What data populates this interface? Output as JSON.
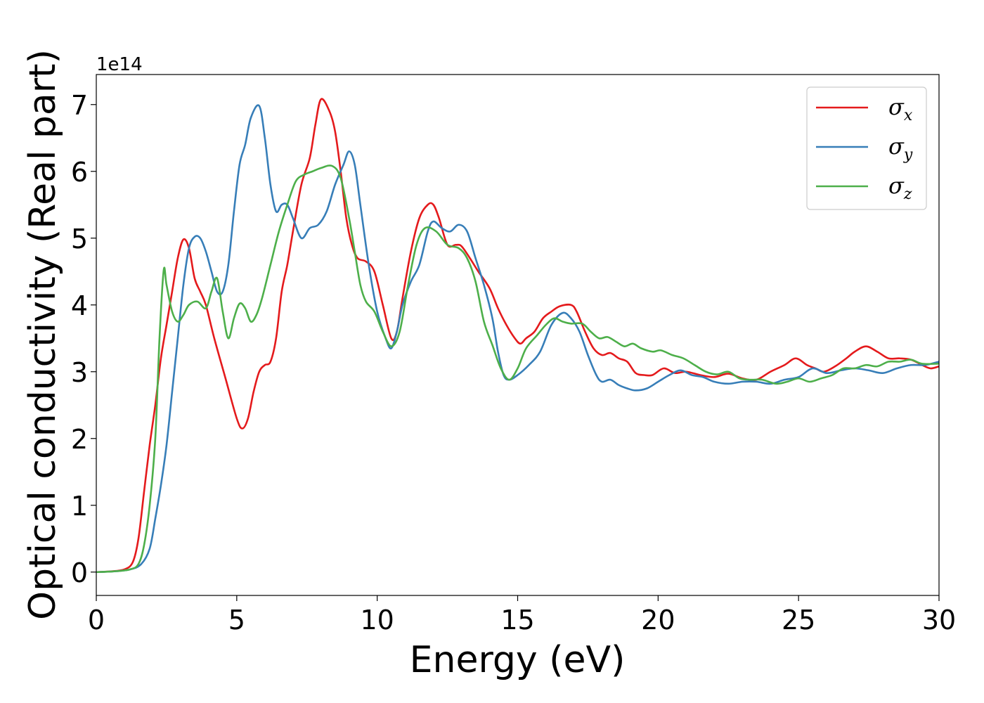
{
  "chart_data": {
    "type": "line",
    "title": "",
    "xlabel": "Energy (eV)",
    "ylabel": "Optical conductivity (Real part)",
    "y_multiplier_label": "1e14",
    "xlim": [
      0,
      30
    ],
    "ylim": [
      -0.35,
      7.45
    ],
    "x_ticks": [
      0,
      5,
      10,
      15,
      20,
      25,
      30
    ],
    "y_ticks": [
      0,
      1,
      2,
      3,
      4,
      5,
      6,
      7
    ],
    "grid": false,
    "legend_placement": "top-right",
    "series": [
      {
        "name": "σx",
        "symbol": "σ",
        "subscript": "x",
        "color": "#e41a1c",
        "points": [
          [
            0,
            0
          ],
          [
            0.5,
            0.01
          ],
          [
            1.0,
            0.04
          ],
          [
            1.3,
            0.15
          ],
          [
            1.5,
            0.5
          ],
          [
            1.7,
            1.2
          ],
          [
            1.9,
            1.9
          ],
          [
            2.1,
            2.5
          ],
          [
            2.3,
            3.2
          ],
          [
            2.5,
            3.7
          ],
          [
            2.7,
            4.2
          ],
          [
            2.9,
            4.7
          ],
          [
            3.1,
            4.98
          ],
          [
            3.3,
            4.85
          ],
          [
            3.5,
            4.4
          ],
          [
            3.7,
            4.2
          ],
          [
            3.9,
            4.0
          ],
          [
            4.2,
            3.5
          ],
          [
            4.6,
            2.9
          ],
          [
            5.0,
            2.3
          ],
          [
            5.2,
            2.15
          ],
          [
            5.4,
            2.3
          ],
          [
            5.6,
            2.7
          ],
          [
            5.8,
            3.0
          ],
          [
            6.0,
            3.1
          ],
          [
            6.2,
            3.15
          ],
          [
            6.4,
            3.5
          ],
          [
            6.6,
            4.2
          ],
          [
            6.8,
            4.6
          ],
          [
            7.0,
            5.1
          ],
          [
            7.3,
            5.8
          ],
          [
            7.6,
            6.2
          ],
          [
            7.8,
            6.7
          ],
          [
            8.0,
            7.08
          ],
          [
            8.3,
            6.9
          ],
          [
            8.5,
            6.6
          ],
          [
            8.7,
            6.0
          ],
          [
            8.9,
            5.3
          ],
          [
            9.1,
            4.9
          ],
          [
            9.3,
            4.7
          ],
          [
            9.6,
            4.65
          ],
          [
            9.9,
            4.5
          ],
          [
            10.2,
            4.0
          ],
          [
            10.5,
            3.5
          ],
          [
            10.7,
            3.6
          ],
          [
            10.9,
            4.1
          ],
          [
            11.2,
            4.8
          ],
          [
            11.5,
            5.3
          ],
          [
            11.8,
            5.5
          ],
          [
            12.0,
            5.5
          ],
          [
            12.2,
            5.3
          ],
          [
            12.5,
            4.9
          ],
          [
            12.8,
            4.9
          ],
          [
            13.0,
            4.88
          ],
          [
            13.3,
            4.7
          ],
          [
            13.6,
            4.5
          ],
          [
            14.0,
            4.25
          ],
          [
            14.3,
            3.95
          ],
          [
            14.6,
            3.7
          ],
          [
            14.9,
            3.5
          ],
          [
            15.1,
            3.42
          ],
          [
            15.3,
            3.5
          ],
          [
            15.6,
            3.6
          ],
          [
            15.9,
            3.8
          ],
          [
            16.2,
            3.9
          ],
          [
            16.5,
            3.98
          ],
          [
            16.9,
            4.0
          ],
          [
            17.1,
            3.9
          ],
          [
            17.4,
            3.6
          ],
          [
            17.7,
            3.35
          ],
          [
            18.0,
            3.25
          ],
          [
            18.3,
            3.28
          ],
          [
            18.6,
            3.2
          ],
          [
            18.9,
            3.15
          ],
          [
            19.2,
            2.98
          ],
          [
            19.5,
            2.95
          ],
          [
            19.8,
            2.95
          ],
          [
            20.2,
            3.05
          ],
          [
            20.6,
            2.98
          ],
          [
            21.0,
            3.0
          ],
          [
            21.5,
            2.95
          ],
          [
            22.0,
            2.92
          ],
          [
            22.5,
            2.97
          ],
          [
            23.0,
            2.9
          ],
          [
            23.5,
            2.88
          ],
          [
            24.0,
            3.0
          ],
          [
            24.5,
            3.1
          ],
          [
            24.9,
            3.2
          ],
          [
            25.3,
            3.1
          ],
          [
            25.6,
            3.05
          ],
          [
            25.9,
            3.0
          ],
          [
            26.3,
            3.08
          ],
          [
            26.7,
            3.2
          ],
          [
            27.0,
            3.3
          ],
          [
            27.4,
            3.38
          ],
          [
            27.8,
            3.3
          ],
          [
            28.2,
            3.2
          ],
          [
            28.6,
            3.2
          ],
          [
            29.0,
            3.18
          ],
          [
            29.4,
            3.1
          ],
          [
            29.7,
            3.05
          ],
          [
            30.0,
            3.08
          ]
        ]
      },
      {
        "name": "σy",
        "symbol": "σ",
        "subscript": "y",
        "color": "#377eb8",
        "points": [
          [
            0,
            0
          ],
          [
            0.6,
            0.01
          ],
          [
            1.2,
            0.04
          ],
          [
            1.6,
            0.12
          ],
          [
            1.9,
            0.35
          ],
          [
            2.1,
            0.8
          ],
          [
            2.3,
            1.3
          ],
          [
            2.5,
            1.9
          ],
          [
            2.7,
            2.7
          ],
          [
            2.9,
            3.5
          ],
          [
            3.1,
            4.3
          ],
          [
            3.3,
            4.85
          ],
          [
            3.5,
            5.02
          ],
          [
            3.7,
            5.0
          ],
          [
            3.9,
            4.8
          ],
          [
            4.1,
            4.5
          ],
          [
            4.3,
            4.2
          ],
          [
            4.5,
            4.2
          ],
          [
            4.7,
            4.6
          ],
          [
            4.9,
            5.4
          ],
          [
            5.1,
            6.1
          ],
          [
            5.3,
            6.4
          ],
          [
            5.5,
            6.8
          ],
          [
            5.8,
            6.98
          ],
          [
            6.0,
            6.5
          ],
          [
            6.2,
            5.8
          ],
          [
            6.4,
            5.4
          ],
          [
            6.6,
            5.5
          ],
          [
            6.8,
            5.5
          ],
          [
            7.0,
            5.3
          ],
          [
            7.3,
            5.0
          ],
          [
            7.6,
            5.15
          ],
          [
            7.9,
            5.2
          ],
          [
            8.2,
            5.4
          ],
          [
            8.5,
            5.8
          ],
          [
            8.8,
            6.1
          ],
          [
            9.0,
            6.3
          ],
          [
            9.2,
            6.1
          ],
          [
            9.4,
            5.5
          ],
          [
            9.7,
            4.6
          ],
          [
            10.0,
            3.9
          ],
          [
            10.3,
            3.5
          ],
          [
            10.5,
            3.35
          ],
          [
            10.7,
            3.6
          ],
          [
            10.9,
            4.0
          ],
          [
            11.2,
            4.35
          ],
          [
            11.5,
            4.6
          ],
          [
            11.8,
            5.1
          ],
          [
            12.0,
            5.25
          ],
          [
            12.3,
            5.15
          ],
          [
            12.6,
            5.1
          ],
          [
            12.9,
            5.2
          ],
          [
            13.2,
            5.1
          ],
          [
            13.5,
            4.7
          ],
          [
            13.8,
            4.3
          ],
          [
            14.1,
            3.8
          ],
          [
            14.3,
            3.3
          ],
          [
            14.5,
            2.95
          ],
          [
            14.7,
            2.88
          ],
          [
            15.0,
            2.95
          ],
          [
            15.4,
            3.1
          ],
          [
            15.8,
            3.3
          ],
          [
            16.2,
            3.7
          ],
          [
            16.6,
            3.88
          ],
          [
            16.9,
            3.8
          ],
          [
            17.2,
            3.6
          ],
          [
            17.5,
            3.25
          ],
          [
            17.8,
            2.95
          ],
          [
            18.0,
            2.85
          ],
          [
            18.3,
            2.88
          ],
          [
            18.6,
            2.8
          ],
          [
            18.9,
            2.75
          ],
          [
            19.2,
            2.72
          ],
          [
            19.6,
            2.75
          ],
          [
            20.0,
            2.85
          ],
          [
            20.4,
            2.95
          ],
          [
            20.8,
            3.02
          ],
          [
            21.2,
            2.95
          ],
          [
            21.6,
            2.92
          ],
          [
            22.0,
            2.85
          ],
          [
            22.5,
            2.82
          ],
          [
            23.0,
            2.85
          ],
          [
            23.5,
            2.85
          ],
          [
            24.0,
            2.82
          ],
          [
            24.5,
            2.88
          ],
          [
            25.0,
            2.92
          ],
          [
            25.5,
            3.05
          ],
          [
            26.0,
            2.98
          ],
          [
            26.5,
            3.02
          ],
          [
            27.0,
            3.05
          ],
          [
            27.5,
            3.02
          ],
          [
            28.0,
            2.98
          ],
          [
            28.5,
            3.05
          ],
          [
            29.0,
            3.1
          ],
          [
            29.5,
            3.1
          ],
          [
            30.0,
            3.15
          ]
        ]
      },
      {
        "name": "σz",
        "symbol": "σ",
        "subscript": "z",
        "color": "#4daf4a",
        "points": [
          [
            0,
            0
          ],
          [
            0.6,
            0.01
          ],
          [
            1.2,
            0.04
          ],
          [
            1.5,
            0.12
          ],
          [
            1.7,
            0.4
          ],
          [
            1.9,
            1.0
          ],
          [
            2.1,
            2.0
          ],
          [
            2.25,
            3.5
          ],
          [
            2.4,
            4.52
          ],
          [
            2.5,
            4.3
          ],
          [
            2.7,
            3.9
          ],
          [
            2.9,
            3.75
          ],
          [
            3.1,
            3.85
          ],
          [
            3.3,
            4.0
          ],
          [
            3.6,
            4.05
          ],
          [
            3.9,
            3.95
          ],
          [
            4.1,
            4.2
          ],
          [
            4.3,
            4.4
          ],
          [
            4.5,
            3.9
          ],
          [
            4.7,
            3.5
          ],
          [
            4.9,
            3.8
          ],
          [
            5.1,
            4.02
          ],
          [
            5.3,
            3.95
          ],
          [
            5.5,
            3.75
          ],
          [
            5.7,
            3.85
          ],
          [
            5.9,
            4.1
          ],
          [
            6.2,
            4.6
          ],
          [
            6.5,
            5.1
          ],
          [
            6.8,
            5.5
          ],
          [
            7.1,
            5.85
          ],
          [
            7.4,
            5.95
          ],
          [
            7.7,
            6.0
          ],
          [
            8.0,
            6.05
          ],
          [
            8.4,
            6.08
          ],
          [
            8.7,
            5.9
          ],
          [
            9.0,
            5.3
          ],
          [
            9.2,
            4.8
          ],
          [
            9.4,
            4.3
          ],
          [
            9.6,
            4.05
          ],
          [
            9.9,
            3.9
          ],
          [
            10.2,
            3.6
          ],
          [
            10.5,
            3.38
          ],
          [
            10.8,
            3.6
          ],
          [
            11.1,
            4.3
          ],
          [
            11.4,
            4.9
          ],
          [
            11.7,
            5.15
          ],
          [
            12.1,
            5.1
          ],
          [
            12.5,
            4.9
          ],
          [
            12.9,
            4.85
          ],
          [
            13.2,
            4.7
          ],
          [
            13.5,
            4.35
          ],
          [
            13.8,
            3.75
          ],
          [
            14.1,
            3.4
          ],
          [
            14.4,
            3.05
          ],
          [
            14.7,
            2.88
          ],
          [
            15.0,
            3.05
          ],
          [
            15.3,
            3.35
          ],
          [
            15.7,
            3.55
          ],
          [
            16.0,
            3.7
          ],
          [
            16.3,
            3.8
          ],
          [
            16.6,
            3.75
          ],
          [
            16.9,
            3.72
          ],
          [
            17.3,
            3.72
          ],
          [
            17.6,
            3.6
          ],
          [
            17.9,
            3.5
          ],
          [
            18.2,
            3.52
          ],
          [
            18.5,
            3.45
          ],
          [
            18.8,
            3.38
          ],
          [
            19.1,
            3.42
          ],
          [
            19.4,
            3.35
          ],
          [
            19.8,
            3.3
          ],
          [
            20.1,
            3.32
          ],
          [
            20.5,
            3.25
          ],
          [
            20.9,
            3.2
          ],
          [
            21.3,
            3.1
          ],
          [
            21.7,
            3.0
          ],
          [
            22.1,
            2.96
          ],
          [
            22.5,
            3.0
          ],
          [
            22.9,
            2.9
          ],
          [
            23.3,
            2.88
          ],
          [
            23.7,
            2.88
          ],
          [
            24.2,
            2.82
          ],
          [
            24.6,
            2.85
          ],
          [
            25.0,
            2.9
          ],
          [
            25.4,
            2.85
          ],
          [
            25.8,
            2.9
          ],
          [
            26.2,
            2.95
          ],
          [
            26.6,
            3.05
          ],
          [
            27.0,
            3.05
          ],
          [
            27.4,
            3.1
          ],
          [
            27.8,
            3.08
          ],
          [
            28.2,
            3.15
          ],
          [
            28.6,
            3.15
          ],
          [
            29.0,
            3.18
          ],
          [
            29.4,
            3.12
          ],
          [
            30.0,
            3.12
          ]
        ]
      }
    ]
  }
}
